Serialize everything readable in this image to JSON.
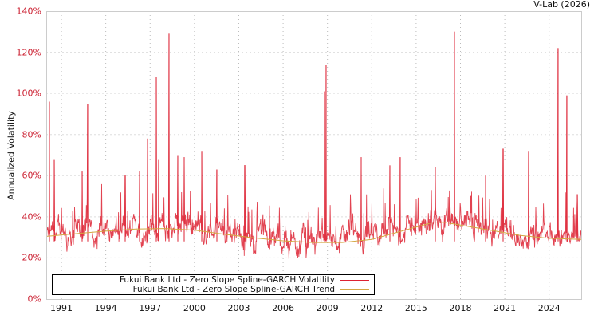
{
  "credit": "V-Lab (2026)",
  "chart_data": {
    "type": "line",
    "title": "",
    "xlabel": "",
    "ylabel": "Annualized Volatility",
    "ylim": [
      0,
      140
    ],
    "yticks": [
      "0%",
      "20%",
      "40%",
      "60%",
      "80%",
      "100%",
      "120%",
      "140%"
    ],
    "xticks": [
      "1991",
      "1994",
      "1997",
      "2000",
      "2003",
      "2006",
      "2009",
      "2012",
      "2015",
      "2018",
      "2021",
      "2024"
    ],
    "xrange": [
      1990.0,
      2026.2
    ],
    "grid": true,
    "legend_position": "lower-left",
    "series": [
      {
        "name": "Fukui Bank Ltd - Zero Slope Spline-GARCH Volatility",
        "color": "#dd2233",
        "baseline_range": [
          19,
          45
        ],
        "spikes": [
          {
            "x": 1990.2,
            "y": 96
          },
          {
            "x": 1990.5,
            "y": 68
          },
          {
            "x": 1992.4,
            "y": 62
          },
          {
            "x": 1992.8,
            "y": 95
          },
          {
            "x": 1995.3,
            "y": 60
          },
          {
            "x": 1996.3,
            "y": 62
          },
          {
            "x": 1996.8,
            "y": 78
          },
          {
            "x": 1997.4,
            "y": 108
          },
          {
            "x": 1997.6,
            "y": 68
          },
          {
            "x": 1998.3,
            "y": 129
          },
          {
            "x": 1998.9,
            "y": 70
          },
          {
            "x": 1999.3,
            "y": 69
          },
          {
            "x": 2000.5,
            "y": 72
          },
          {
            "x": 2001.5,
            "y": 63
          },
          {
            "x": 2003.4,
            "y": 65
          },
          {
            "x": 2008.8,
            "y": 101
          },
          {
            "x": 2008.9,
            "y": 114
          },
          {
            "x": 2011.3,
            "y": 69
          },
          {
            "x": 2013.2,
            "y": 65
          },
          {
            "x": 2013.9,
            "y": 69
          },
          {
            "x": 2016.3,
            "y": 64
          },
          {
            "x": 2017.6,
            "y": 130
          },
          {
            "x": 2019.7,
            "y": 60
          },
          {
            "x": 2020.9,
            "y": 73
          },
          {
            "x": 2022.6,
            "y": 72
          },
          {
            "x": 2024.6,
            "y": 122
          },
          {
            "x": 2025.2,
            "y": 99
          },
          {
            "x": 2025.9,
            "y": 51
          }
        ]
      },
      {
        "name": "Fukui Bank Ltd - Zero Slope Spline-GARCH Trend",
        "color": "#d4a843",
        "points": [
          {
            "x": 1990.0,
            "y": 30.5
          },
          {
            "x": 1992.0,
            "y": 31.8
          },
          {
            "x": 1994.0,
            "y": 33.0
          },
          {
            "x": 1996.0,
            "y": 34.0
          },
          {
            "x": 1998.0,
            "y": 34.3
          },
          {
            "x": 2000.0,
            "y": 33.5
          },
          {
            "x": 2002.0,
            "y": 31.5
          },
          {
            "x": 2004.0,
            "y": 29.8
          },
          {
            "x": 2006.0,
            "y": 28.3
          },
          {
            "x": 2008.0,
            "y": 27.5
          },
          {
            "x": 2010.0,
            "y": 27.5
          },
          {
            "x": 2012.0,
            "y": 29.0
          },
          {
            "x": 2014.0,
            "y": 33.0
          },
          {
            "x": 2016.0,
            "y": 37.0
          },
          {
            "x": 2017.0,
            "y": 37.2
          },
          {
            "x": 2018.0,
            "y": 36.0
          },
          {
            "x": 2020.0,
            "y": 33.5
          },
          {
            "x": 2022.0,
            "y": 31.0
          },
          {
            "x": 2024.0,
            "y": 29.5
          },
          {
            "x": 2026.2,
            "y": 29.0
          }
        ]
      }
    ]
  }
}
